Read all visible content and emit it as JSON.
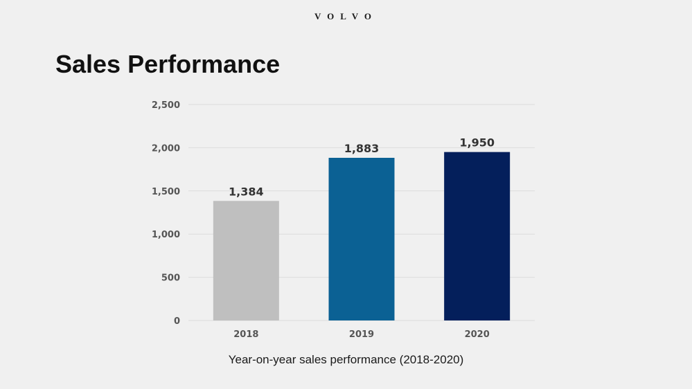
{
  "brand": "VOLVO",
  "title": "Sales Performance",
  "caption": "Year-on-year sales performance (2018-2020)",
  "colors": {
    "background": "#f0f0f0",
    "grid": "#dcdcdc",
    "bars": [
      "#bfbfbf",
      "#0b6194",
      "#041f5b"
    ]
  },
  "chart_data": {
    "type": "bar",
    "categories": [
      "2018",
      "2019",
      "2020"
    ],
    "values": [
      1384,
      1883,
      1950
    ],
    "value_labels": [
      "1,384",
      "1,883",
      "1,950"
    ],
    "yticks": [
      0,
      500,
      1000,
      1500,
      2000,
      2500
    ],
    "ytick_labels": [
      "0",
      "500",
      "1,000",
      "1,500",
      "2,000",
      "2,500"
    ],
    "ylim": [
      0,
      2500
    ],
    "grid": true,
    "legend": "none"
  }
}
